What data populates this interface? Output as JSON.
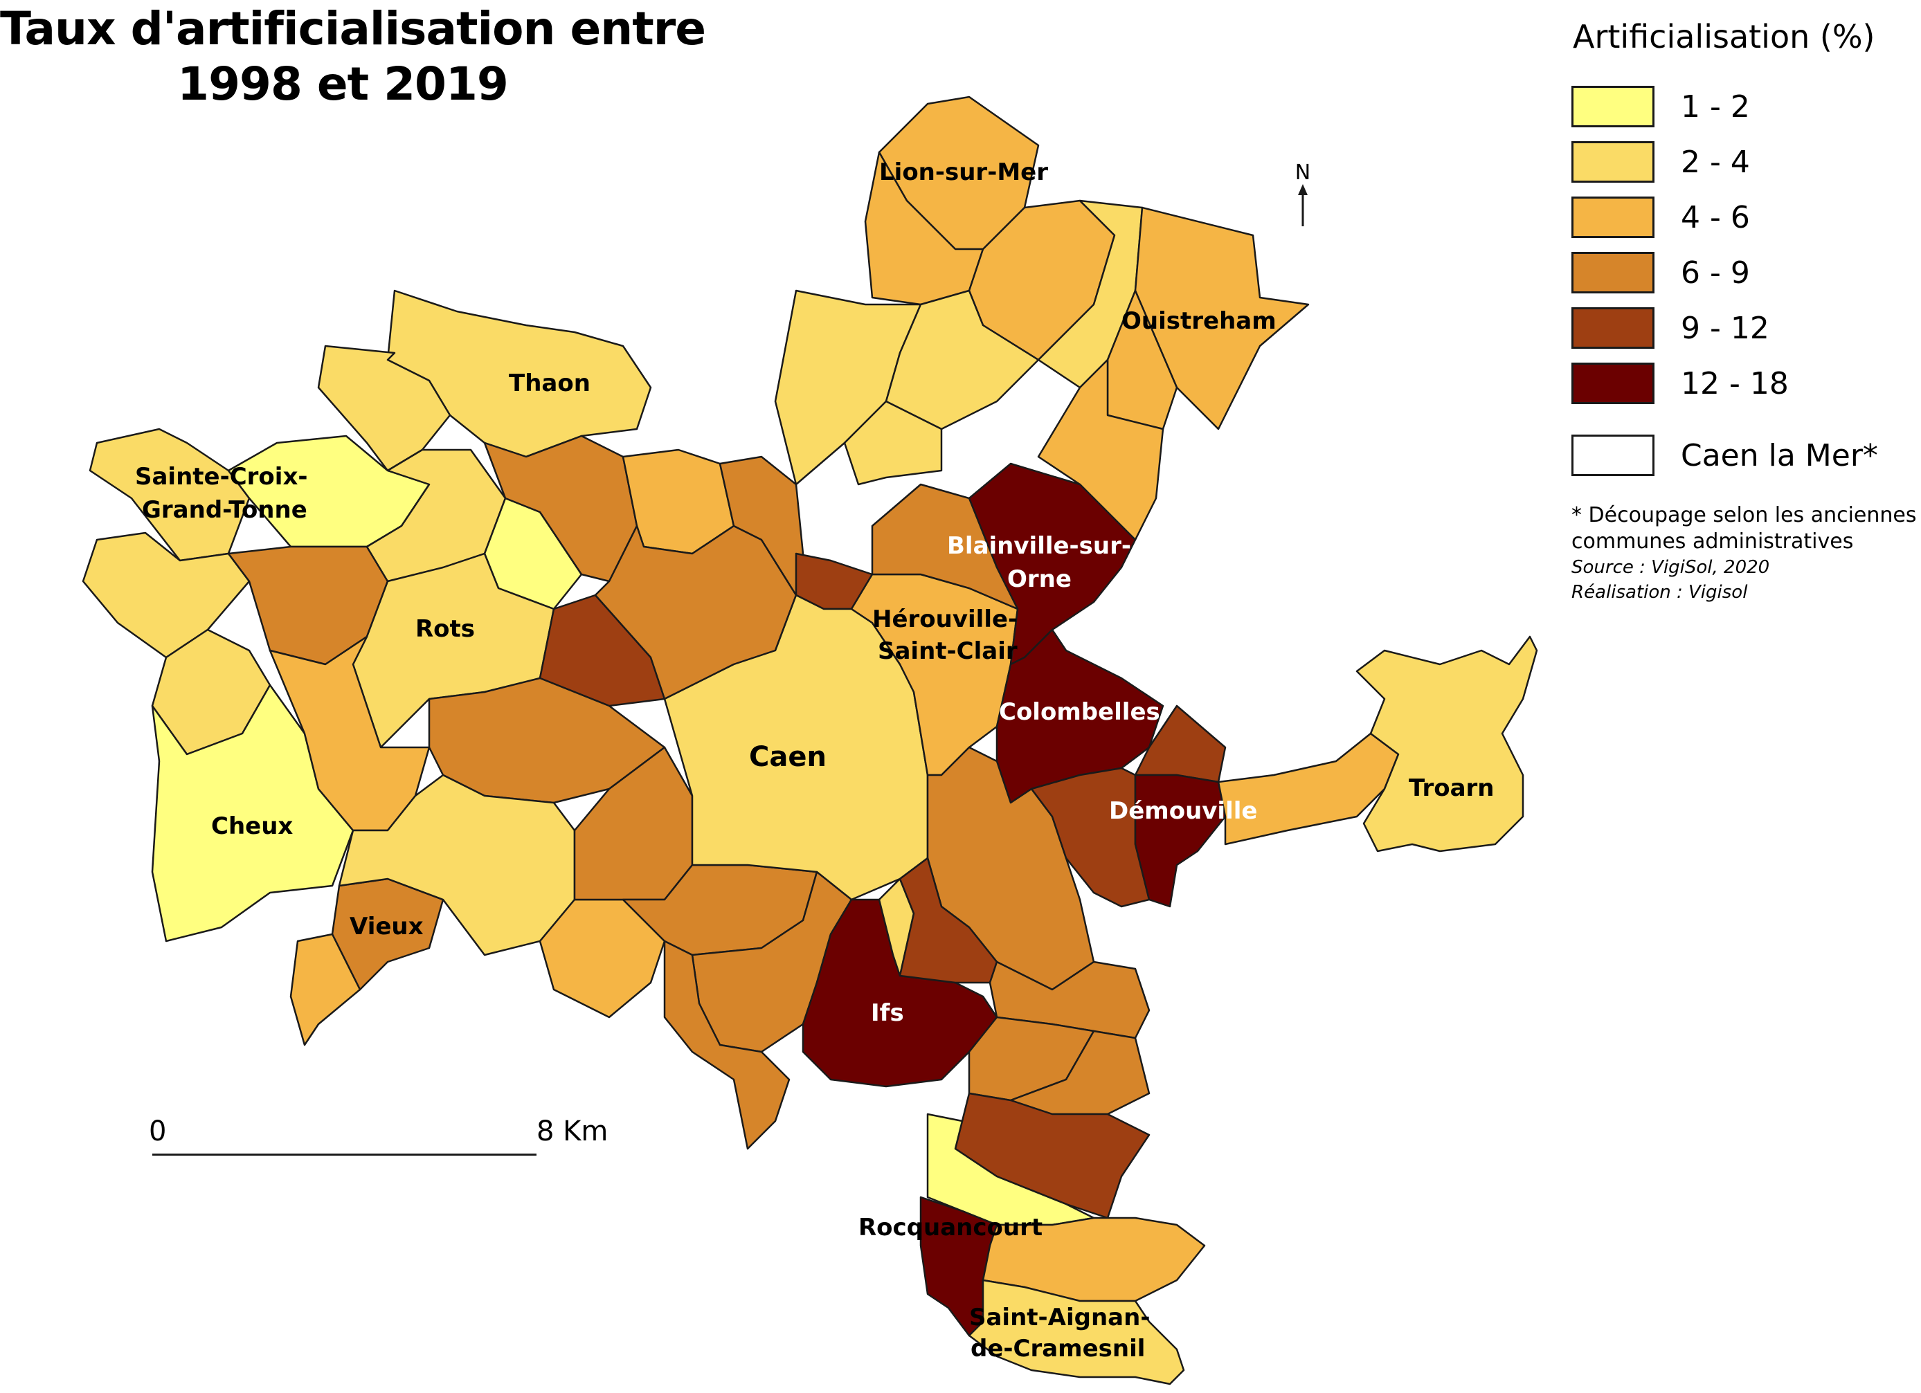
{
  "title": {
    "line1": "Taux d'artificialisation entre",
    "line2": "1998 et 2019"
  },
  "legend": {
    "title": "Artificialisation (%)",
    "classes": [
      {
        "label": "1 - 2",
        "color": "#ffff80"
      },
      {
        "label": "2 - 4",
        "color": "#fadb66"
      },
      {
        "label": "4 - 6",
        "color": "#f5b545"
      },
      {
        "label": "6 - 9",
        "color": "#d6852a"
      },
      {
        "label": "9 - 12",
        "color": "#9e3f12"
      },
      {
        "label": "12 - 18",
        "color": "#6b0000"
      }
    ],
    "boundary_label": "Caen la Mer*",
    "boundary_color": "#ffffff",
    "note_line1": "* Découpage selon les anciennes",
    "note_line2": "communes administratives",
    "source": "Source : VigiSol, 2020",
    "credit": "Réalisation : Vigisol"
  },
  "scalebar": {
    "start": "0",
    "end": "8 Km"
  },
  "north": {
    "letter": "N"
  },
  "map": {
    "communes": [
      {
        "name": "Lion-sur-Mer",
        "class": "4 - 6"
      },
      {
        "name": "Ouistreham",
        "class": "4 - 6"
      },
      {
        "name": "Thaon",
        "class": "2 - 4"
      },
      {
        "name": "Sainte-Croix-Grand-Tonne",
        "class": "2 - 4"
      },
      {
        "name": "Rots",
        "class": "2 - 4"
      },
      {
        "name": "Cheux",
        "class": "1 - 2"
      },
      {
        "name": "Vieux",
        "class": "6 - 9"
      },
      {
        "name": "Caen",
        "class": "2 - 4"
      },
      {
        "name": "Hérouville-Saint-Clair",
        "class": "4 - 6"
      },
      {
        "name": "Blainville-sur-Orne",
        "class": "12 - 18"
      },
      {
        "name": "Colombelles",
        "class": "12 - 18"
      },
      {
        "name": "Démouville",
        "class": "12 - 18"
      },
      {
        "name": "Troarn",
        "class": "2 - 4"
      },
      {
        "name": "Ifs",
        "class": "12 - 18"
      },
      {
        "name": "Rocquancourt",
        "class": "12 - 18"
      },
      {
        "name": "Saint-Aignan-de-Cramesnil",
        "class": "2 - 4"
      }
    ],
    "labels": {
      "lion": "Lion-sur-Mer",
      "ouistreham": "Ouistreham",
      "thaon": "Thaon",
      "stecroix1": "Sainte-Croix-",
      "stecroix2": "Grand-Tonne",
      "rots": "Rots",
      "cheux": "Cheux",
      "vieux": "Vieux",
      "caen": "Caen",
      "herouville1": "Hérouville-",
      "herouville2": "Saint-Clair",
      "blainville1": "Blainville-sur-",
      "blainville2": "Orne",
      "colombelles": "Colombelles",
      "demouville": "Démouville",
      "troarn": "Troarn",
      "ifs": "Ifs",
      "rocquancourt": "Rocquancourt",
      "staignan1": "Saint-Aignan-",
      "staignan2": "de-Cramesnil"
    }
  }
}
